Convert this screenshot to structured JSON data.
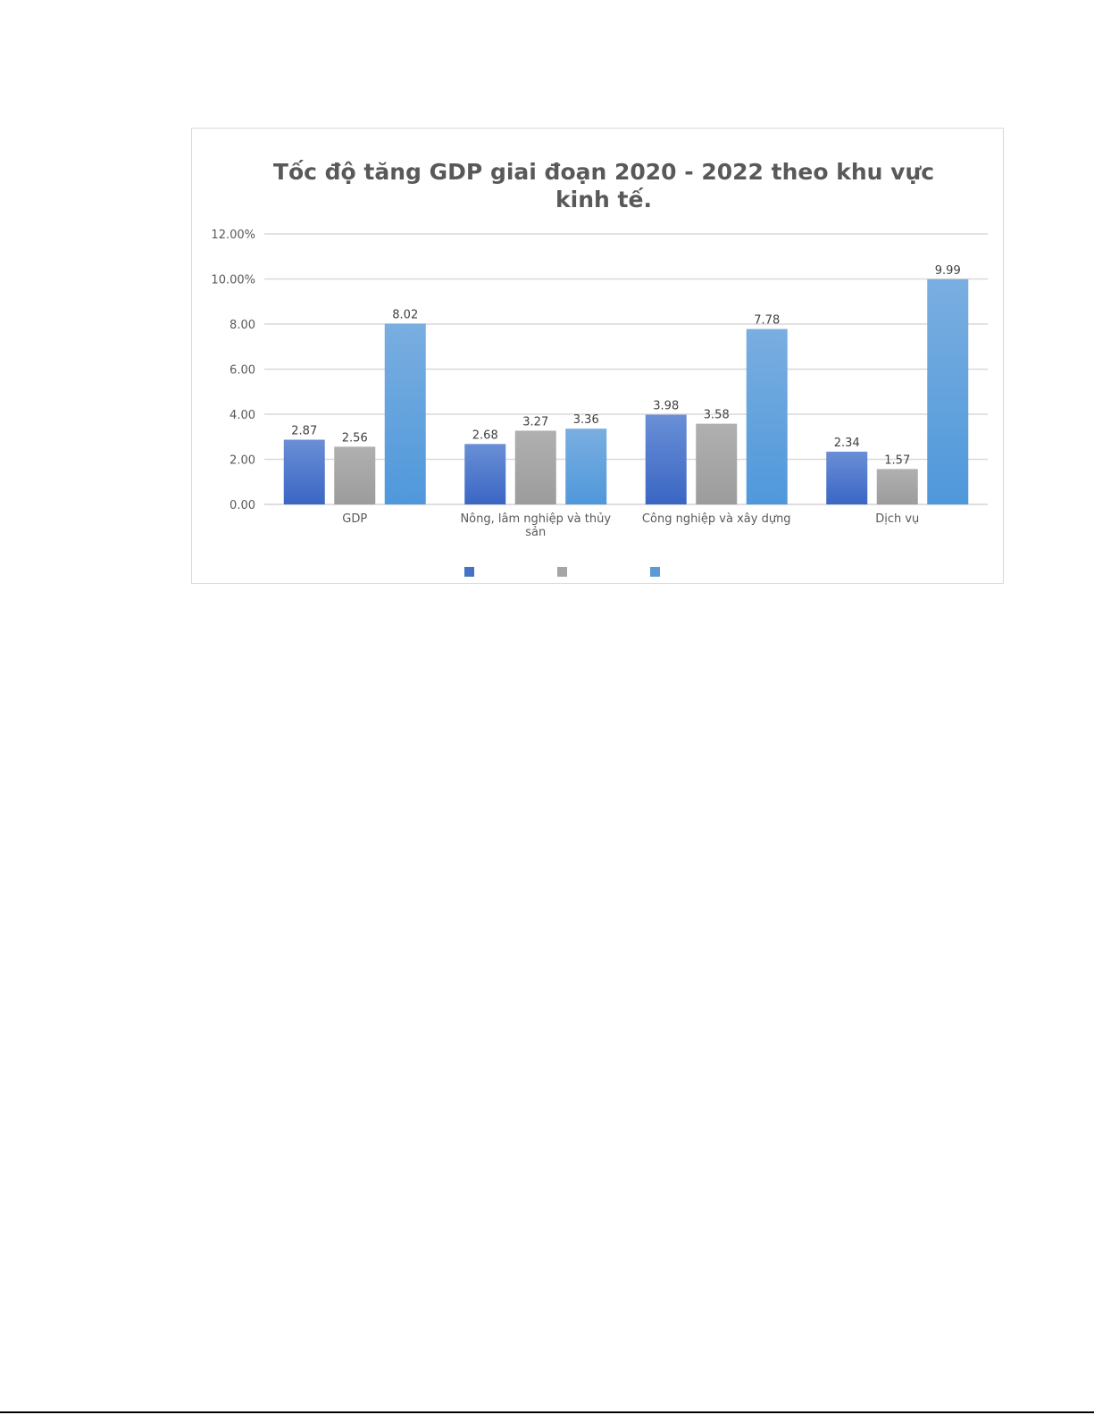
{
  "chart_data": {
    "type": "bar",
    "title_line1": "Tốc độ tăng GDP giai đoạn 2020 - 2022 theo khu vực",
    "title_line2": "kinh tế.",
    "categories": [
      "GDP",
      "Nông, lâm nghiệp và thủy sản",
      "Công nghiệp và xây dựng",
      "Dịch vụ"
    ],
    "category_label_lines": [
      [
        "GDP"
      ],
      [
        "Nông, lâm nghiệp và thủy",
        "sản"
      ],
      [
        "Công nghiệp và xây dựng"
      ],
      [
        "Dịch vụ"
      ]
    ],
    "series": [
      {
        "values": [
          2.87,
          2.68,
          3.98,
          2.34
        ],
        "color": "#4472C4"
      },
      {
        "values": [
          2.56,
          3.27,
          3.58,
          1.57
        ],
        "color": "#A5A5A5"
      },
      {
        "values": [
          8.02,
          3.36,
          7.78,
          9.99
        ],
        "color": "#5B9BD5"
      }
    ],
    "data_labels": [
      [
        "2.87",
        "2.68",
        "3.98",
        "2.34"
      ],
      [
        "2.56",
        "3.27",
        "3.58",
        "1.57"
      ],
      [
        "8.02",
        "3.36",
        "7.78",
        "9.99"
      ]
    ],
    "ylim": [
      0,
      12
    ],
    "yticks": [
      0,
      2,
      4,
      6,
      8,
      10,
      12
    ],
    "ytick_labels": [
      "0.00",
      "2.00",
      "4.00",
      "6.00",
      "8.00",
      "10.00%",
      "12.00%"
    ],
    "xlabel": "",
    "ylabel": "",
    "grid": true,
    "legend_placement": "bottom"
  }
}
